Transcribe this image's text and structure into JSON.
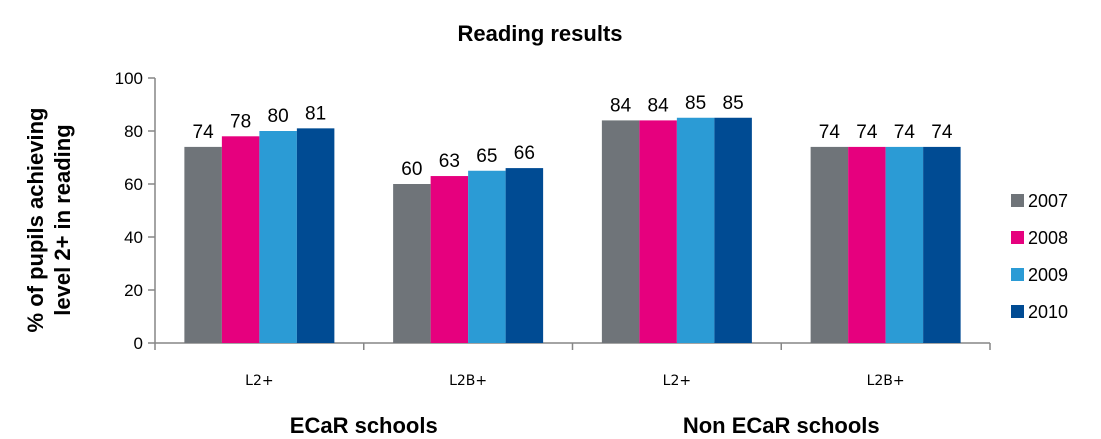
{
  "chart_data": {
    "type": "bar",
    "title": "Reading results",
    "ylabel_lines": [
      "% of pupils achieving",
      "level 2+ in reading"
    ],
    "ylim": [
      0,
      100
    ],
    "yticks": [
      0,
      20,
      40,
      60,
      80,
      100
    ],
    "categories": [
      "L2+",
      "L2B+",
      "L2+",
      "L2B+"
    ],
    "groups": [
      {
        "label": "ECaR schools",
        "categories": [
          0,
          1
        ]
      },
      {
        "label": "Non ECaR schools",
        "categories": [
          2,
          3
        ]
      }
    ],
    "series": [
      {
        "name": "2007",
        "color": "#6f7479",
        "values": [
          74,
          60,
          84,
          74
        ]
      },
      {
        "name": "2008",
        "color": "#e6007e",
        "values": [
          78,
          63,
          84,
          74
        ]
      },
      {
        "name": "2009",
        "color": "#2b9bd5",
        "values": [
          80,
          65,
          85,
          74
        ]
      },
      {
        "name": "2010",
        "color": "#004b93",
        "values": [
          81,
          66,
          85,
          74
        ]
      }
    ],
    "legend_position": "right",
    "grid": false
  }
}
